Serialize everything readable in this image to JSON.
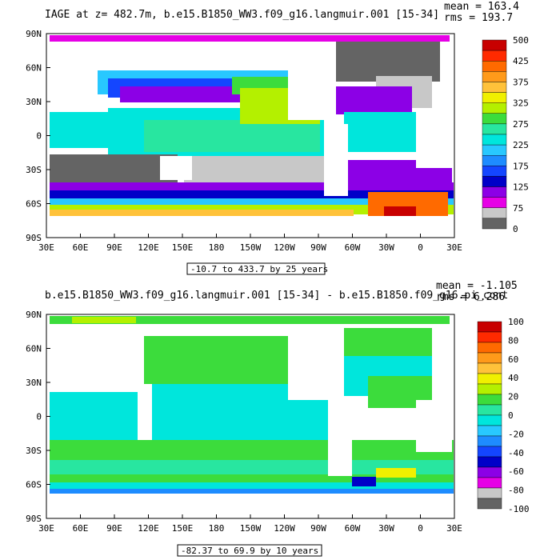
{
  "panels": [
    {
      "title": "IAGE at z= 482.7m, b.e15.B1850_WW3.f09_g16.langmuir.001 [15-34]",
      "mean_text": "mean = 163.4",
      "rms_text": "rms = 193.7",
      "range_text": "-10.7 to 433.7 by 25 years",
      "lat_labels": [
        "90N",
        "60N",
        "30N",
        "0",
        "30S",
        "60S",
        "90S"
      ],
      "lon_labels": [
        "30E",
        "60E",
        "90E",
        "120E",
        "150E",
        "180",
        "150W",
        "120W",
        "90W",
        "60W",
        "30W",
        "0",
        "30E"
      ],
      "colorbar": {
        "labels": [
          "500",
          "425",
          "375",
          "325",
          "275",
          "225",
          "175",
          "125",
          "75",
          "0"
        ],
        "colors": [
          "#c80000",
          "#ff2a00",
          "#ff6a00",
          "#ff9a1a",
          "#ffc23a",
          "#f0f000",
          "#b4f000",
          "#3cdc3c",
          "#28e6a0",
          "#00e6dc",
          "#28c8ff",
          "#1e8cff",
          "#1446ff",
          "#0000c8",
          "#8c00e6",
          "#e600e6",
          "#c8c8c8",
          "#646464"
        ]
      }
    },
    {
      "title": "b.e15.B1850_WW3.f09_g16.langmuir.001 [15-34] - b.e15.B1850.f09_g16.pi_cont",
      "mean_text": "mean = -1.105",
      "rms_text": "rms = 6.286",
      "range_text": "-82.37 to 69.9 by 10 years",
      "lat_labels": [
        "90N",
        "60N",
        "30N",
        "0",
        "30S",
        "60S",
        "90S"
      ],
      "lon_labels": [
        "30E",
        "60E",
        "90E",
        "120E",
        "150E",
        "180",
        "150W",
        "120W",
        "90W",
        "60W",
        "30W",
        "0",
        "30E"
      ],
      "colorbar": {
        "labels": [
          "100",
          "80",
          "60",
          "40",
          "20",
          "0",
          "-20",
          "-40",
          "-60",
          "-80",
          "-100"
        ],
        "colors": [
          "#c80000",
          "#ff2a00",
          "#ff6a00",
          "#ff9a1a",
          "#ffc23a",
          "#f0f000",
          "#b4f000",
          "#3cdc3c",
          "#28e6a0",
          "#00e6dc",
          "#28c8ff",
          "#1e8cff",
          "#1446ff",
          "#0000c8",
          "#8c00e6",
          "#e600e6",
          "#c8c8c8",
          "#646464"
        ]
      }
    }
  ]
}
